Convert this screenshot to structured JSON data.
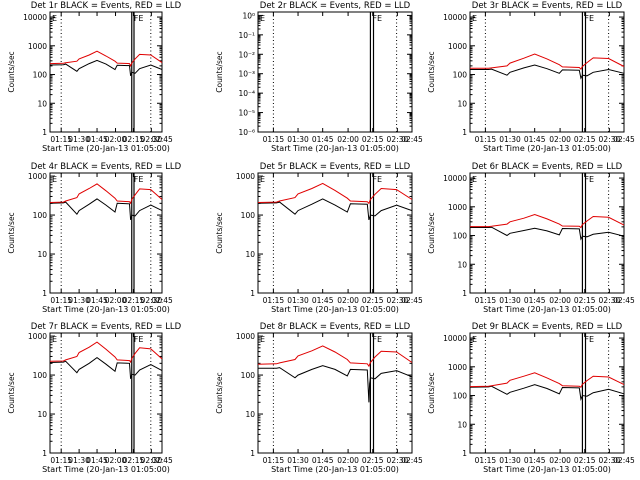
{
  "figure": {
    "colors": {
      "events": "#000000",
      "lld": "#e00000",
      "axis": "#000000",
      "background": "#ffffff"
    }
  },
  "chart_data": [
    {
      "type": "line",
      "title": "Det 1r BLACK = Events, RED = LLD",
      "xlabel": "Start Time (20-Jan-13 01:05:00)",
      "ylabel": "Counts/sec",
      "ylog": true,
      "ylim": [
        1,
        15000
      ],
      "yticks": [
        1,
        10,
        100,
        1000,
        10000
      ],
      "yticklabels": [
        "1",
        "10",
        "100",
        "1000",
        "10000"
      ],
      "xlim": [
        0,
        1
      ],
      "xtick_labels": [
        "01:15",
        "01:30",
        "01:45",
        "02:00",
        "02:15",
        "02:30",
        "02:45"
      ],
      "xtick_pos": [
        0.1,
        0.26,
        0.42,
        0.585,
        0.745,
        0.905,
        1.0
      ],
      "dotted_x": [
        0.1,
        0.9,
        1.0
      ],
      "solid_x": [
        0.73,
        0.75
      ],
      "corner_marks": [
        "E"
      ],
      "saa_mark": "FE",
      "series": [
        {
          "name": "Events",
          "x": [
            0.0,
            0.12,
            0.14,
            0.24,
            0.26,
            0.35,
            0.42,
            0.5,
            0.58,
            0.6,
            0.71,
            0.72,
            0.73,
            0.76,
            0.8,
            0.9,
            1.0
          ],
          "y": [
            215,
            220,
            230,
            130,
            160,
            240,
            310,
            230,
            150,
            210,
            205,
            90,
            120,
            110,
            160,
            215,
            150
          ]
        },
        {
          "name": "LLD",
          "x": [
            0.0,
            0.12,
            0.14,
            0.24,
            0.26,
            0.35,
            0.42,
            0.5,
            0.58,
            0.6,
            0.71,
            0.72,
            0.73,
            0.76,
            0.8,
            0.9,
            1.0
          ],
          "y": [
            240,
            245,
            255,
            290,
            350,
            480,
            650,
            440,
            290,
            250,
            240,
            200,
            250,
            350,
            500,
            480,
            260
          ]
        }
      ]
    },
    {
      "type": "line",
      "title": "Det 2r BLACK = Events, RED = LLD",
      "xlabel": "Start Time (20-Jan-13 01:05:00)",
      "ylabel": "Counts/sec",
      "ylog": true,
      "ylim": [
        1e-06,
        1.5
      ],
      "yticks": [
        1e-06,
        1e-05,
        0.0001,
        0.001,
        0.01,
        0.1,
        1
      ],
      "yticklabels": [
        "10⁻⁶",
        "10⁻⁵",
        "10⁻⁴",
        "10⁻³",
        "10⁻²",
        "10⁻¹",
        "10⁰"
      ],
      "xlim": [
        0,
        1
      ],
      "xtick_labels": [
        "01:15",
        "01:30",
        "01:45",
        "02:00",
        "02:15",
        "02:30",
        "02:45"
      ],
      "xtick_pos": [
        0.1,
        0.26,
        0.42,
        0.585,
        0.745,
        0.905,
        1.0
      ],
      "dotted_x": [
        0.1,
        0.9,
        1.0
      ],
      "solid_x": [
        0.73,
        0.75
      ],
      "corner_marks": [
        "E"
      ],
      "saa_mark": "FE",
      "series": []
    },
    {
      "type": "line",
      "title": "Det 3r BLACK = Events, RED = LLD",
      "xlabel": "Start Time (20-Jan-13 01:05:00)",
      "ylabel": "Counts/sec",
      "ylog": true,
      "ylim": [
        1,
        15000
      ],
      "yticks": [
        1,
        10,
        100,
        1000,
        10000
      ],
      "yticklabels": [
        "1",
        "10",
        "100",
        "1000",
        "10000"
      ],
      "xlim": [
        0,
        1
      ],
      "xtick_labels": [
        "01:15",
        "01:30",
        "01:45",
        "02:00",
        "02:15",
        "02:30",
        "02:45"
      ],
      "xtick_pos": [
        0.1,
        0.26,
        0.42,
        0.585,
        0.745,
        0.905,
        1.0
      ],
      "dotted_x": [
        0.1,
        0.9,
        1.0
      ],
      "solid_x": [
        0.73,
        0.75
      ],
      "corner_marks": [
        "E"
      ],
      "saa_mark": "FE",
      "series": [
        {
          "name": "Events",
          "x": [
            0.0,
            0.12,
            0.14,
            0.24,
            0.26,
            0.35,
            0.42,
            0.5,
            0.58,
            0.6,
            0.71,
            0.72,
            0.73,
            0.76,
            0.8,
            0.9,
            1.0
          ],
          "y": [
            150,
            150,
            155,
            95,
            120,
            170,
            215,
            160,
            110,
            145,
            140,
            75,
            95,
            90,
            120,
            150,
            110
          ]
        },
        {
          "name": "LLD",
          "x": [
            0.0,
            0.12,
            0.14,
            0.24,
            0.26,
            0.35,
            0.42,
            0.5,
            0.58,
            0.6,
            0.71,
            0.72,
            0.73,
            0.76,
            0.8,
            0.9,
            1.0
          ],
          "y": [
            165,
            165,
            170,
            200,
            250,
            370,
            520,
            350,
            220,
            185,
            175,
            155,
            190,
            260,
            380,
            360,
            190
          ]
        }
      ]
    },
    {
      "type": "line",
      "title": "Det 4r BLACK = Events, RED = LLD",
      "xlabel": "Start Time (20-Jan-13 01:05:00)",
      "ylabel": "Counts/sec",
      "ylog": true,
      "ylim": [
        1,
        1200
      ],
      "yticks": [
        1,
        10,
        100,
        1000
      ],
      "yticklabels": [
        "1",
        "10",
        "100",
        "1000"
      ],
      "xlim": [
        0,
        1
      ],
      "xtick_labels": [
        "01:15",
        "01:30",
        "01:45",
        "02:00",
        "02:15",
        "02:30",
        "02:45"
      ],
      "xtick_pos": [
        0.1,
        0.26,
        0.42,
        0.585,
        0.745,
        0.905,
        1.0
      ],
      "dotted_x": [
        0.1,
        0.9,
        1.0
      ],
      "solid_x": [
        0.73,
        0.75
      ],
      "corner_marks": [
        "E"
      ],
      "saa_mark": "FE",
      "series": [
        {
          "name": "Events",
          "x": [
            0.0,
            0.12,
            0.14,
            0.24,
            0.26,
            0.35,
            0.42,
            0.5,
            0.58,
            0.6,
            0.71,
            0.72,
            0.73,
            0.76,
            0.8,
            0.9,
            1.0
          ],
          "y": [
            200,
            205,
            215,
            105,
            130,
            190,
            260,
            180,
            120,
            200,
            195,
            75,
            100,
            95,
            130,
            180,
            130
          ]
        },
        {
          "name": "LLD",
          "x": [
            0.0,
            0.12,
            0.14,
            0.24,
            0.26,
            0.35,
            0.42,
            0.5,
            0.58,
            0.6,
            0.71,
            0.72,
            0.73,
            0.76,
            0.8,
            0.9,
            1.0
          ],
          "y": [
            210,
            215,
            230,
            280,
            350,
            480,
            630,
            420,
            270,
            230,
            220,
            200,
            250,
            330,
            470,
            450,
            250
          ]
        }
      ]
    },
    {
      "type": "line",
      "title": "Det 5r BLACK = Events, RED = LLD",
      "xlabel": "Start Time (20-Jan-13 01:05:00)",
      "ylabel": "Counts/sec",
      "ylog": true,
      "ylim": [
        1,
        1200
      ],
      "yticks": [
        1,
        10,
        100,
        1000
      ],
      "yticklabels": [
        "1",
        "10",
        "100",
        "1000"
      ],
      "xlim": [
        0,
        1
      ],
      "xtick_labels": [
        "01:15",
        "01:30",
        "01:45",
        "02:00",
        "02:15",
        "02:30",
        "02:45"
      ],
      "xtick_pos": [
        0.1,
        0.26,
        0.42,
        0.585,
        0.745,
        0.905,
        1.0
      ],
      "dotted_x": [
        0.1,
        0.9,
        1.0
      ],
      "solid_x": [
        0.73,
        0.75
      ],
      "corner_marks": [
        "E"
      ],
      "saa_mark": "FE",
      "series": [
        {
          "name": "Events",
          "x": [
            0.0,
            0.12,
            0.14,
            0.24,
            0.26,
            0.35,
            0.42,
            0.5,
            0.58,
            0.6,
            0.71,
            0.72,
            0.73,
            0.76,
            0.8,
            0.9,
            1.0
          ],
          "y": [
            200,
            205,
            215,
            105,
            130,
            190,
            260,
            180,
            120,
            195,
            190,
            75,
            100,
            95,
            130,
            180,
            130
          ]
        },
        {
          "name": "LLD",
          "x": [
            0.0,
            0.12,
            0.14,
            0.24,
            0.26,
            0.35,
            0.42,
            0.5,
            0.58,
            0.6,
            0.71,
            0.72,
            0.73,
            0.76,
            0.8,
            0.9,
            1.0
          ],
          "y": [
            210,
            215,
            230,
            280,
            350,
            480,
            650,
            430,
            270,
            230,
            220,
            200,
            250,
            340,
            480,
            450,
            250
          ]
        }
      ]
    },
    {
      "type": "line",
      "title": "Det 6r BLACK = Events, RED = LLD",
      "xlabel": "Start Time (20-Jan-13 01:05:00)",
      "ylabel": "Counts/sec",
      "ylog": true,
      "ylim": [
        1,
        15000
      ],
      "yticks": [
        1,
        10,
        100,
        1000,
        10000
      ],
      "yticklabels": [
        "1",
        "10",
        "100",
        "1000",
        "10000"
      ],
      "xlim": [
        0,
        1
      ],
      "xtick_labels": [
        "01:15",
        "01:30",
        "01:45",
        "02:00",
        "02:15",
        "02:30",
        "02:45"
      ],
      "xtick_pos": [
        0.1,
        0.26,
        0.42,
        0.585,
        0.745,
        0.905,
        1.0
      ],
      "dotted_x": [
        0.1,
        0.9,
        1.0
      ],
      "solid_x": [
        0.73,
        0.75
      ],
      "corner_marks": [
        "E"
      ],
      "saa_mark": "FE",
      "series": [
        {
          "name": "Events",
          "x": [
            0.0,
            0.12,
            0.14,
            0.24,
            0.26,
            0.35,
            0.42,
            0.5,
            0.58,
            0.6,
            0.71,
            0.72,
            0.73,
            0.76,
            0.8,
            0.9,
            1.0
          ],
          "y": [
            190,
            190,
            195,
            100,
            120,
            150,
            180,
            145,
            105,
            175,
            170,
            75,
            95,
            90,
            110,
            130,
            95
          ]
        },
        {
          "name": "LLD",
          "x": [
            0.0,
            0.12,
            0.14,
            0.24,
            0.26,
            0.35,
            0.42,
            0.5,
            0.58,
            0.6,
            0.71,
            0.72,
            0.73,
            0.76,
            0.8,
            0.9,
            1.0
          ],
          "y": [
            205,
            205,
            210,
            250,
            300,
            400,
            540,
            380,
            250,
            215,
            210,
            190,
            240,
            320,
            460,
            430,
            230
          ]
        }
      ]
    },
    {
      "type": "line",
      "title": "Det 7r BLACK = Events, RED = LLD",
      "xlabel": "Start Time (20-Jan-13 01:05:00)",
      "ylabel": "Counts/sec",
      "ylog": true,
      "ylim": [
        1,
        1200
      ],
      "yticks": [
        1,
        10,
        100,
        1000
      ],
      "yticklabels": [
        "1",
        "10",
        "100",
        "1000"
      ],
      "xlim": [
        0,
        1
      ],
      "xtick_labels": [
        "01:15",
        "01:30",
        "01:45",
        "02:00",
        "02:15",
        "02:30",
        "02:45"
      ],
      "xtick_pos": [
        0.1,
        0.26,
        0.42,
        0.585,
        0.745,
        0.905,
        1.0
      ],
      "dotted_x": [
        0.1,
        0.9,
        1.0
      ],
      "solid_x": [
        0.73,
        0.75
      ],
      "corner_marks": [
        "E"
      ],
      "saa_mark": "FE",
      "series": [
        {
          "name": "Events",
          "x": [
            0.0,
            0.12,
            0.14,
            0.24,
            0.26,
            0.35,
            0.42,
            0.5,
            0.58,
            0.6,
            0.71,
            0.72,
            0.73,
            0.76,
            0.8,
            0.9,
            1.0
          ],
          "y": [
            210,
            215,
            225,
            115,
            140,
            200,
            280,
            190,
            125,
            205,
            200,
            80,
            105,
            100,
            135,
            185,
            130
          ]
        },
        {
          "name": "LLD",
          "x": [
            0.0,
            0.12,
            0.14,
            0.24,
            0.26,
            0.35,
            0.42,
            0.5,
            0.58,
            0.6,
            0.71,
            0.72,
            0.73,
            0.76,
            0.8,
            0.9,
            1.0
          ],
          "y": [
            225,
            230,
            245,
            300,
            380,
            520,
            700,
            460,
            290,
            245,
            235,
            215,
            265,
            360,
            500,
            470,
            260
          ]
        }
      ]
    },
    {
      "type": "line",
      "title": "Det 8r BLACK = Events, RED = LLD",
      "xlabel": "Start Time (20-Jan-13 01:05:00)",
      "ylabel": "Counts/sec",
      "ylog": true,
      "ylim": [
        1,
        1200
      ],
      "yticks": [
        1,
        10,
        100,
        1000
      ],
      "yticklabels": [
        "1",
        "10",
        "100",
        "1000"
      ],
      "xlim": [
        0,
        1
      ],
      "xtick_labels": [
        "01:15",
        "01:30",
        "01:45",
        "02:00",
        "02:15",
        "02:30",
        "02:45"
      ],
      "xtick_pos": [
        0.1,
        0.26,
        0.42,
        0.585,
        0.745,
        0.905,
        1.0
      ],
      "dotted_x": [
        0.1,
        0.9,
        1.0
      ],
      "solid_x": [
        0.73,
        0.75
      ],
      "corner_marks": [
        "E"
      ],
      "saa_mark": "FE",
      "series": [
        {
          "name": "Events",
          "x": [
            0.0,
            0.12,
            0.14,
            0.24,
            0.26,
            0.35,
            0.42,
            0.5,
            0.58,
            0.6,
            0.71,
            0.72,
            0.725,
            0.73,
            0.76,
            0.8,
            0.9,
            1.0
          ],
          "y": [
            150,
            150,
            155,
            85,
            100,
            140,
            175,
            140,
            95,
            140,
            135,
            20,
            60,
            85,
            80,
            110,
            130,
            90
          ]
        },
        {
          "name": "LLD",
          "x": [
            0.0,
            0.12,
            0.14,
            0.24,
            0.26,
            0.35,
            0.42,
            0.5,
            0.58,
            0.6,
            0.71,
            0.72,
            0.73,
            0.76,
            0.8,
            0.9,
            1.0
          ],
          "y": [
            190,
            195,
            205,
            250,
            310,
            420,
            560,
            390,
            250,
            205,
            195,
            170,
            210,
            290,
            410,
            390,
            210
          ]
        }
      ]
    },
    {
      "type": "line",
      "title": "Det 9r BLACK = Events, RED = LLD",
      "xlabel": "Start Time (20-Jan-13 01:05:00)",
      "ylabel": "Counts/sec",
      "ylog": true,
      "ylim": [
        1,
        15000
      ],
      "yticks": [
        1,
        10,
        100,
        1000,
        10000
      ],
      "yticklabels": [
        "1",
        "10",
        "100",
        "1000",
        "10000"
      ],
      "xlim": [
        0,
        1
      ],
      "xtick_labels": [
        "01:15",
        "01:30",
        "01:45",
        "02:00",
        "02:15",
        "02:30",
        "02:45"
      ],
      "xtick_pos": [
        0.1,
        0.26,
        0.42,
        0.585,
        0.745,
        0.905,
        1.0
      ],
      "dotted_x": [
        0.1,
        0.9,
        1.0
      ],
      "solid_x": [
        0.73,
        0.75
      ],
      "corner_marks": [
        "E"
      ],
      "saa_mark": "FE",
      "series": [
        {
          "name": "Events",
          "x": [
            0.0,
            0.12,
            0.14,
            0.24,
            0.26,
            0.35,
            0.42,
            0.5,
            0.58,
            0.6,
            0.71,
            0.72,
            0.73,
            0.76,
            0.8,
            0.9,
            1.0
          ],
          "y": [
            195,
            200,
            210,
            110,
            130,
            180,
            240,
            175,
            115,
            190,
            185,
            75,
            100,
            95,
            125,
            165,
            115
          ]
        },
        {
          "name": "LLD",
          "x": [
            0.0,
            0.12,
            0.14,
            0.24,
            0.26,
            0.35,
            0.42,
            0.5,
            0.58,
            0.6,
            0.71,
            0.72,
            0.73,
            0.76,
            0.8,
            0.9,
            1.0
          ],
          "y": [
            205,
            210,
            220,
            270,
            340,
            470,
            620,
            410,
            260,
            220,
            210,
            195,
            245,
            330,
            470,
            440,
            240
          ]
        }
      ]
    }
  ]
}
